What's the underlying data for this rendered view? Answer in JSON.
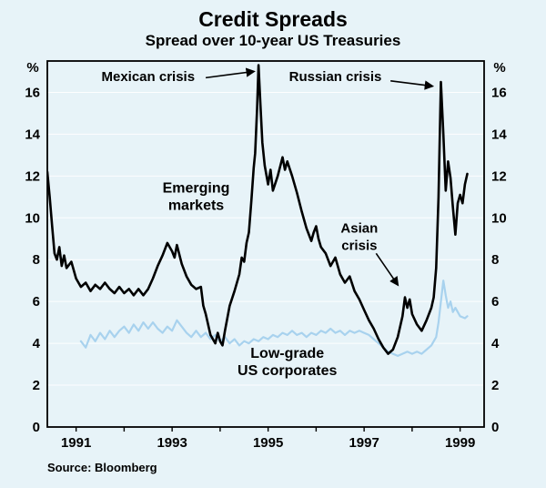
{
  "footer": {
    "source": "Source: Bloomberg"
  },
  "chart_data": {
    "type": "line",
    "title": "Credit Spreads",
    "subtitle": "Spread over 10-year US Treasuries",
    "unit_label": "%",
    "xlim": [
      1990.4,
      1999.5
    ],
    "ylim": [
      0,
      17.5
    ],
    "yticks": [
      0,
      2,
      4,
      6,
      8,
      10,
      12,
      14,
      16
    ],
    "xticks_labeled": [
      1991,
      1993,
      1995,
      1997,
      1999
    ],
    "xticks_minor": [
      1992,
      1994,
      1996,
      1998
    ],
    "grid": true,
    "legend": "in-plot labels",
    "colors": {
      "background": "#e7f3f8",
      "grid": "#ffffff",
      "axis": "#000000",
      "emerging": "#000000",
      "lowgrade": "#a8d2ee"
    },
    "series": [
      {
        "id": "low-grade-us-corporates",
        "name": "Low-grade US corporates",
        "color_key": "lowgrade",
        "width": 2.2,
        "points": [
          [
            1991.1,
            4.1
          ],
          [
            1991.2,
            3.8
          ],
          [
            1991.3,
            4.4
          ],
          [
            1991.4,
            4.1
          ],
          [
            1991.5,
            4.5
          ],
          [
            1991.6,
            4.2
          ],
          [
            1991.7,
            4.6
          ],
          [
            1991.8,
            4.3
          ],
          [
            1991.9,
            4.6
          ],
          [
            1992.0,
            4.8
          ],
          [
            1992.1,
            4.5
          ],
          [
            1992.2,
            4.9
          ],
          [
            1992.3,
            4.6
          ],
          [
            1992.4,
            5.0
          ],
          [
            1992.5,
            4.7
          ],
          [
            1992.6,
            5.0
          ],
          [
            1992.7,
            4.7
          ],
          [
            1992.8,
            4.5
          ],
          [
            1992.9,
            4.8
          ],
          [
            1993.0,
            4.6
          ],
          [
            1993.1,
            5.1
          ],
          [
            1993.2,
            4.8
          ],
          [
            1993.3,
            4.5
          ],
          [
            1993.4,
            4.3
          ],
          [
            1993.5,
            4.6
          ],
          [
            1993.6,
            4.3
          ],
          [
            1993.7,
            4.5
          ],
          [
            1993.8,
            4.2
          ],
          [
            1993.9,
            4.4
          ],
          [
            1994.0,
            4.1
          ],
          [
            1994.1,
            4.3
          ],
          [
            1994.2,
            4.0
          ],
          [
            1994.3,
            4.2
          ],
          [
            1994.4,
            3.9
          ],
          [
            1994.5,
            4.1
          ],
          [
            1994.6,
            4.0
          ],
          [
            1994.7,
            4.2
          ],
          [
            1994.8,
            4.1
          ],
          [
            1994.9,
            4.3
          ],
          [
            1995.0,
            4.2
          ],
          [
            1995.1,
            4.4
          ],
          [
            1995.2,
            4.3
          ],
          [
            1995.3,
            4.5
          ],
          [
            1995.4,
            4.4
          ],
          [
            1995.5,
            4.6
          ],
          [
            1995.6,
            4.4
          ],
          [
            1995.7,
            4.5
          ],
          [
            1995.8,
            4.3
          ],
          [
            1995.9,
            4.5
          ],
          [
            1996.0,
            4.4
          ],
          [
            1996.1,
            4.6
          ],
          [
            1996.2,
            4.5
          ],
          [
            1996.3,
            4.7
          ],
          [
            1996.4,
            4.5
          ],
          [
            1996.5,
            4.6
          ],
          [
            1996.6,
            4.4
          ],
          [
            1996.7,
            4.6
          ],
          [
            1996.8,
            4.5
          ],
          [
            1996.9,
            4.6
          ],
          [
            1997.0,
            4.5
          ],
          [
            1997.1,
            4.4
          ],
          [
            1997.2,
            4.2
          ],
          [
            1997.3,
            4.0
          ],
          [
            1997.4,
            3.8
          ],
          [
            1997.5,
            3.6
          ],
          [
            1997.6,
            3.5
          ],
          [
            1997.7,
            3.4
          ],
          [
            1997.8,
            3.5
          ],
          [
            1997.9,
            3.6
          ],
          [
            1998.0,
            3.5
          ],
          [
            1998.1,
            3.6
          ],
          [
            1998.2,
            3.5
          ],
          [
            1998.3,
            3.7
          ],
          [
            1998.4,
            3.9
          ],
          [
            1998.5,
            4.3
          ],
          [
            1998.55,
            5.0
          ],
          [
            1998.6,
            6.0
          ],
          [
            1998.65,
            7.0
          ],
          [
            1998.7,
            6.3
          ],
          [
            1998.75,
            5.7
          ],
          [
            1998.8,
            6.0
          ],
          [
            1998.85,
            5.5
          ],
          [
            1998.9,
            5.7
          ],
          [
            1999.0,
            5.3
          ],
          [
            1999.1,
            5.2
          ],
          [
            1999.15,
            5.3
          ]
        ]
      },
      {
        "id": "emerging-markets",
        "name": "Emerging markets",
        "color_key": "emerging",
        "width": 2.6,
        "points": [
          [
            1990.4,
            12.2
          ],
          [
            1990.45,
            11.0
          ],
          [
            1990.5,
            9.6
          ],
          [
            1990.55,
            8.3
          ],
          [
            1990.6,
            8.0
          ],
          [
            1990.65,
            8.6
          ],
          [
            1990.7,
            7.7
          ],
          [
            1990.75,
            8.2
          ],
          [
            1990.8,
            7.6
          ],
          [
            1990.9,
            7.9
          ],
          [
            1991.0,
            7.1
          ],
          [
            1991.1,
            6.7
          ],
          [
            1991.2,
            6.9
          ],
          [
            1991.3,
            6.5
          ],
          [
            1991.4,
            6.8
          ],
          [
            1991.5,
            6.6
          ],
          [
            1991.6,
            6.9
          ],
          [
            1991.7,
            6.6
          ],
          [
            1991.8,
            6.4
          ],
          [
            1991.9,
            6.7
          ],
          [
            1992.0,
            6.4
          ],
          [
            1992.1,
            6.6
          ],
          [
            1992.2,
            6.3
          ],
          [
            1992.3,
            6.6
          ],
          [
            1992.4,
            6.3
          ],
          [
            1992.5,
            6.6
          ],
          [
            1992.6,
            7.1
          ],
          [
            1992.7,
            7.7
          ],
          [
            1992.8,
            8.2
          ],
          [
            1992.9,
            8.8
          ],
          [
            1993.0,
            8.4
          ],
          [
            1993.05,
            8.1
          ],
          [
            1993.1,
            8.7
          ],
          [
            1993.2,
            7.8
          ],
          [
            1993.3,
            7.2
          ],
          [
            1993.4,
            6.8
          ],
          [
            1993.5,
            6.6
          ],
          [
            1993.6,
            6.7
          ],
          [
            1993.65,
            5.8
          ],
          [
            1993.7,
            5.4
          ],
          [
            1993.8,
            4.4
          ],
          [
            1993.9,
            4.0
          ],
          [
            1993.95,
            4.5
          ],
          [
            1994.0,
            4.1
          ],
          [
            1994.05,
            3.9
          ],
          [
            1994.1,
            4.6
          ],
          [
            1994.2,
            5.8
          ],
          [
            1994.3,
            6.5
          ],
          [
            1994.4,
            7.3
          ],
          [
            1994.45,
            8.1
          ],
          [
            1994.5,
            7.9
          ],
          [
            1994.55,
            8.8
          ],
          [
            1994.6,
            9.3
          ],
          [
            1994.65,
            10.8
          ],
          [
            1994.7,
            12.4
          ],
          [
            1994.73,
            13.1
          ],
          [
            1994.77,
            15.2
          ],
          [
            1994.8,
            17.3
          ],
          [
            1994.84,
            15.4
          ],
          [
            1994.88,
            13.6
          ],
          [
            1994.93,
            12.5
          ],
          [
            1995.0,
            11.6
          ],
          [
            1995.05,
            12.3
          ],
          [
            1995.1,
            11.3
          ],
          [
            1995.2,
            12.0
          ],
          [
            1995.3,
            12.9
          ],
          [
            1995.35,
            12.3
          ],
          [
            1995.4,
            12.7
          ],
          [
            1995.5,
            12.0
          ],
          [
            1995.6,
            11.2
          ],
          [
            1995.7,
            10.3
          ],
          [
            1995.8,
            9.5
          ],
          [
            1995.9,
            8.9
          ],
          [
            1995.95,
            9.3
          ],
          [
            1996.0,
            9.6
          ],
          [
            1996.05,
            9.0
          ],
          [
            1996.1,
            8.6
          ],
          [
            1996.2,
            8.3
          ],
          [
            1996.3,
            7.7
          ],
          [
            1996.4,
            8.1
          ],
          [
            1996.5,
            7.3
          ],
          [
            1996.6,
            6.9
          ],
          [
            1996.7,
            7.2
          ],
          [
            1996.8,
            6.5
          ],
          [
            1996.9,
            6.1
          ],
          [
            1997.0,
            5.6
          ],
          [
            1997.1,
            5.1
          ],
          [
            1997.2,
            4.7
          ],
          [
            1997.3,
            4.2
          ],
          [
            1997.4,
            3.8
          ],
          [
            1997.5,
            3.5
          ],
          [
            1997.6,
            3.7
          ],
          [
            1997.7,
            4.3
          ],
          [
            1997.8,
            5.3
          ],
          [
            1997.85,
            6.2
          ],
          [
            1997.9,
            5.7
          ],
          [
            1997.95,
            6.1
          ],
          [
            1998.0,
            5.4
          ],
          [
            1998.1,
            4.9
          ],
          [
            1998.2,
            4.6
          ],
          [
            1998.3,
            5.1
          ],
          [
            1998.4,
            5.7
          ],
          [
            1998.45,
            6.2
          ],
          [
            1998.5,
            7.6
          ],
          [
            1998.55,
            11.0
          ],
          [
            1998.6,
            16.5
          ],
          [
            1998.65,
            14.0
          ],
          [
            1998.7,
            11.3
          ],
          [
            1998.75,
            12.7
          ],
          [
            1998.8,
            11.9
          ],
          [
            1998.85,
            10.5
          ],
          [
            1998.9,
            9.2
          ],
          [
            1998.95,
            10.7
          ],
          [
            1999.0,
            11.1
          ],
          [
            1999.05,
            10.7
          ],
          [
            1999.1,
            11.6
          ],
          [
            1999.15,
            12.1
          ]
        ]
      }
    ],
    "series_labels": [
      {
        "lines": [
          "Emerging",
          "markets"
        ],
        "x": 1993.5,
        "y": 11.2
      },
      {
        "lines": [
          "Low-grade",
          "US corporates"
        ],
        "x": 1995.4,
        "y": 3.3
      }
    ],
    "annotations": [
      {
        "id": "mexican-crisis",
        "lines": [
          "Mexican crisis"
        ],
        "x": 1992.5,
        "y": 16.55,
        "arrow": {
          "x1": 1993.7,
          "y1": 16.7,
          "x2": 1994.7,
          "y2": 17.0
        }
      },
      {
        "id": "russian-crisis",
        "lines": [
          "Russian crisis"
        ],
        "x": 1996.4,
        "y": 16.55,
        "arrow": {
          "x1": 1997.55,
          "y1": 16.55,
          "x2": 1998.42,
          "y2": 16.3
        }
      },
      {
        "id": "asian-crisis",
        "lines": [
          "Asian",
          "crisis"
        ],
        "x": 1996.9,
        "y": 9.3,
        "arrow": {
          "x1": 1997.25,
          "y1": 8.3,
          "x2": 1997.7,
          "y2": 6.8
        }
      }
    ]
  }
}
